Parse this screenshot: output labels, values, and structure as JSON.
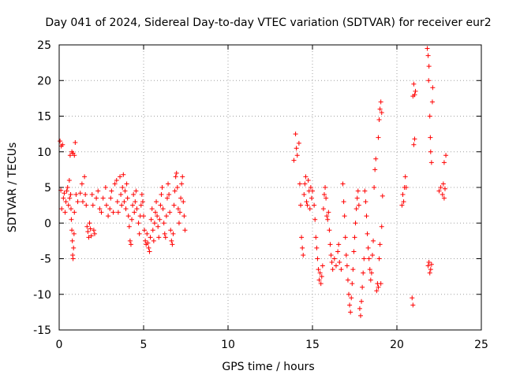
{
  "chart_data": {
    "type": "scatter",
    "title": "Day 041 of 2024, Sidereal Day-to-day VTEC variation (SDTVAR) for receiver eur2",
    "xlabel": "GPS time / hours",
    "ylabel": "SDTVAR / TECUs",
    "xlim": [
      0,
      25
    ],
    "ylim": [
      -15,
      25
    ],
    "x_ticks": [
      0,
      5,
      10,
      15,
      20,
      25
    ],
    "y_ticks": [
      -15,
      -10,
      -5,
      0,
      5,
      10,
      15,
      20,
      25
    ],
    "grid": true,
    "marker": "+",
    "color": "#ff0000",
    "series": [
      {
        "name": "SDTVAR",
        "points": [
          [
            0.05,
            11.5
          ],
          [
            0.12,
            10.8
          ],
          [
            0.2,
            11.0
          ],
          [
            0.1,
            4.6
          ],
          [
            0.15,
            2.0
          ],
          [
            0.25,
            3.5
          ],
          [
            0.3,
            4.2
          ],
          [
            0.35,
            1.5
          ],
          [
            0.4,
            3.0
          ],
          [
            0.45,
            4.5
          ],
          [
            0.5,
            5.0
          ],
          [
            0.55,
            2.5
          ],
          [
            0.6,
            6.0
          ],
          [
            0.62,
            3.5
          ],
          [
            0.65,
            9.5
          ],
          [
            0.68,
            4.0
          ],
          [
            0.7,
            2.0
          ],
          [
            0.72,
            0.5
          ],
          [
            0.75,
            -1.0
          ],
          [
            0.78,
            -2.5
          ],
          [
            0.8,
            -4.5
          ],
          [
            0.82,
            -5.0
          ],
          [
            0.85,
            -3.5
          ],
          [
            0.88,
            -1.5
          ],
          [
            0.9,
            1.5
          ],
          [
            0.75,
            10.0
          ],
          [
            0.82,
            9.8
          ],
          [
            0.95,
            11.3
          ],
          [
            0.9,
            9.5
          ],
          [
            1.0,
            4.0
          ],
          [
            1.1,
            3.0
          ],
          [
            1.25,
            4.2
          ],
          [
            1.35,
            5.5
          ],
          [
            1.4,
            3.0
          ],
          [
            1.5,
            6.5
          ],
          [
            1.55,
            4.0
          ],
          [
            1.6,
            2.5
          ],
          [
            1.65,
            -0.5
          ],
          [
            1.7,
            -1.2
          ],
          [
            1.75,
            -2.0
          ],
          [
            1.8,
            0.0
          ],
          [
            1.85,
            -0.8
          ],
          [
            1.9,
            -1.8
          ],
          [
            1.95,
            4.0
          ],
          [
            2.0,
            2.5
          ],
          [
            2.05,
            -1.0
          ],
          [
            2.1,
            -1.5
          ],
          [
            2.2,
            3.5
          ],
          [
            2.3,
            4.5
          ],
          [
            2.4,
            2.0
          ],
          [
            2.5,
            1.5
          ],
          [
            2.6,
            3.5
          ],
          [
            2.75,
            5.0
          ],
          [
            2.8,
            2.5
          ],
          [
            2.9,
            1.0
          ],
          [
            3.0,
            2.0
          ],
          [
            3.05,
            3.5
          ],
          [
            3.1,
            4.5
          ],
          [
            3.2,
            1.5
          ],
          [
            3.3,
            5.5
          ],
          [
            3.4,
            6.0
          ],
          [
            3.45,
            3.0
          ],
          [
            3.5,
            1.5
          ],
          [
            3.6,
            6.5
          ],
          [
            3.65,
            4.0
          ],
          [
            3.7,
            2.5
          ],
          [
            3.75,
            5.0
          ],
          [
            3.8,
            6.8
          ],
          [
            3.85,
            3.0
          ],
          [
            3.9,
            4.5
          ],
          [
            3.95,
            2.0
          ],
          [
            4.0,
            5.5
          ],
          [
            4.05,
            3.5
          ],
          [
            4.1,
            1.0
          ],
          [
            4.15,
            -0.5
          ],
          [
            4.2,
            -2.5
          ],
          [
            4.25,
            -3.0
          ],
          [
            4.3,
            0.5
          ],
          [
            4.35,
            2.5
          ],
          [
            4.4,
            4.0
          ],
          [
            4.45,
            1.5
          ],
          [
            4.5,
            3.0
          ],
          [
            4.55,
            4.5
          ],
          [
            4.6,
            2.0
          ],
          [
            4.7,
            0.0
          ],
          [
            4.75,
            -1.5
          ],
          [
            4.8,
            1.0
          ],
          [
            4.85,
            2.5
          ],
          [
            4.9,
            4.0
          ],
          [
            4.95,
            3.0
          ],
          [
            5.0,
            1.0
          ],
          [
            5.05,
            -1.0
          ],
          [
            5.1,
            -2.5
          ],
          [
            5.15,
            -3.0
          ],
          [
            5.2,
            -1.5
          ],
          [
            5.25,
            -2.8
          ],
          [
            5.3,
            -3.5
          ],
          [
            5.35,
            -4.0
          ],
          [
            5.4,
            -2.0
          ],
          [
            5.45,
            0.5
          ],
          [
            5.5,
            2.0
          ],
          [
            5.55,
            -1.0
          ],
          [
            5.6,
            -2.5
          ],
          [
            5.65,
            0.0
          ],
          [
            5.7,
            1.5
          ],
          [
            5.75,
            3.0
          ],
          [
            5.8,
            1.0
          ],
          [
            5.85,
            -0.5
          ],
          [
            5.9,
            -2.0
          ],
          [
            5.95,
            0.5
          ],
          [
            6.0,
            2.5
          ],
          [
            6.05,
            4.0
          ],
          [
            6.1,
            5.0
          ],
          [
            6.15,
            2.0
          ],
          [
            6.2,
            0.0
          ],
          [
            6.25,
            -1.5
          ],
          [
            6.3,
            -2.0
          ],
          [
            6.35,
            1.0
          ],
          [
            6.4,
            3.5
          ],
          [
            6.45,
            5.5
          ],
          [
            6.5,
            4.0
          ],
          [
            6.55,
            1.5
          ],
          [
            6.6,
            -1.0
          ],
          [
            6.65,
            -2.5
          ],
          [
            6.7,
            -3.0
          ],
          [
            6.75,
            -1.5
          ],
          [
            6.8,
            2.5
          ],
          [
            6.85,
            4.5
          ],
          [
            6.9,
            6.5
          ],
          [
            6.95,
            7.0
          ],
          [
            7.0,
            5.0
          ],
          [
            7.05,
            2.0
          ],
          [
            7.1,
            0.0
          ],
          [
            7.15,
            1.5
          ],
          [
            7.2,
            3.5
          ],
          [
            7.25,
            5.5
          ],
          [
            7.3,
            6.5
          ],
          [
            7.35,
            3.0
          ],
          [
            7.4,
            1.0
          ],
          [
            7.45,
            -1.0
          ],
          [
            13.9,
            8.8
          ],
          [
            14.0,
            12.5
          ],
          [
            14.05,
            10.5
          ],
          [
            14.1,
            9.5
          ],
          [
            14.2,
            11.2
          ],
          [
            14.25,
            5.5
          ],
          [
            14.3,
            2.5
          ],
          [
            14.35,
            -2.0
          ],
          [
            14.4,
            -3.5
          ],
          [
            14.45,
            -4.5
          ],
          [
            14.5,
            4.0
          ],
          [
            14.55,
            5.5
          ],
          [
            14.6,
            6.5
          ],
          [
            14.65,
            3.0
          ],
          [
            14.7,
            2.5
          ],
          [
            14.75,
            6.0
          ],
          [
            14.8,
            4.5
          ],
          [
            14.85,
            2.0
          ],
          [
            14.9,
            5.0
          ],
          [
            14.95,
            3.5
          ],
          [
            15.0,
            4.5
          ],
          [
            15.1,
            2.5
          ],
          [
            15.15,
            0.5
          ],
          [
            15.2,
            -2.0
          ],
          [
            15.25,
            -3.5
          ],
          [
            15.3,
            -5.0
          ],
          [
            15.35,
            -6.5
          ],
          [
            15.4,
            -8.0
          ],
          [
            15.45,
            -7.0
          ],
          [
            15.5,
            -8.5
          ],
          [
            15.55,
            -7.5
          ],
          [
            15.6,
            -6.0
          ],
          [
            15.65,
            2.0
          ],
          [
            15.7,
            4.0
          ],
          [
            15.75,
            5.0
          ],
          [
            15.8,
            3.5
          ],
          [
            15.85,
            1.0
          ],
          [
            15.9,
            0.5
          ],
          [
            15.95,
            1.5
          ],
          [
            16.0,
            -1.0
          ],
          [
            16.05,
            -3.0
          ],
          [
            16.1,
            -4.5
          ],
          [
            16.15,
            -5.5
          ],
          [
            16.2,
            -6.5
          ],
          [
            16.3,
            -5.0
          ],
          [
            16.4,
            -6.0
          ],
          [
            16.5,
            -4.0
          ],
          [
            16.55,
            -3.0
          ],
          [
            16.6,
            -5.5
          ],
          [
            16.7,
            -6.5
          ],
          [
            16.8,
            5.5
          ],
          [
            16.85,
            3.0
          ],
          [
            16.9,
            1.0
          ],
          [
            16.95,
            -2.0
          ],
          [
            17.0,
            -4.5
          ],
          [
            17.05,
            -6.0
          ],
          [
            17.1,
            -8.0
          ],
          [
            17.15,
            -10.0
          ],
          [
            17.2,
            -11.5
          ],
          [
            17.25,
            -12.5
          ],
          [
            17.3,
            -10.5
          ],
          [
            17.35,
            -8.5
          ],
          [
            17.4,
            -6.5
          ],
          [
            17.45,
            -4.0
          ],
          [
            17.5,
            -2.0
          ],
          [
            17.55,
            0.0
          ],
          [
            17.6,
            2.0
          ],
          [
            17.65,
            3.5
          ],
          [
            17.7,
            4.5
          ],
          [
            17.75,
            2.5
          ],
          [
            17.8,
            -12.0
          ],
          [
            17.85,
            -13.0
          ],
          [
            17.9,
            -11.0
          ],
          [
            17.95,
            -9.0
          ],
          [
            18.0,
            -7.0
          ],
          [
            18.05,
            -5.0
          ],
          [
            18.1,
            4.5
          ],
          [
            18.15,
            3.0
          ],
          [
            18.2,
            1.0
          ],
          [
            18.25,
            -1.5
          ],
          [
            18.3,
            -3.5
          ],
          [
            18.35,
            -5.0
          ],
          [
            18.4,
            -6.5
          ],
          [
            18.45,
            -8.0
          ],
          [
            18.5,
            -7.0
          ],
          [
            18.55,
            -4.5
          ],
          [
            18.6,
            -2.5
          ],
          [
            18.65,
            5.0
          ],
          [
            18.7,
            7.5
          ],
          [
            18.75,
            9.0
          ],
          [
            18.8,
            -9.5
          ],
          [
            18.85,
            -8.5
          ],
          [
            18.9,
            -9.0
          ],
          [
            18.95,
            -5.0
          ],
          [
            19.0,
            -3.0
          ],
          [
            18.9,
            12.0
          ],
          [
            18.95,
            14.5
          ],
          [
            19.0,
            16.0
          ],
          [
            19.05,
            17.0
          ],
          [
            19.1,
            15.5
          ],
          [
            19.1,
            -0.5
          ],
          [
            19.15,
            3.8
          ],
          [
            19.05,
            -8.5
          ],
          [
            20.3,
            2.5
          ],
          [
            20.35,
            4.0
          ],
          [
            20.4,
            3.0
          ],
          [
            20.45,
            5.0
          ],
          [
            20.5,
            6.5
          ],
          [
            20.55,
            5.0
          ],
          [
            20.9,
            -10.5
          ],
          [
            20.95,
            -11.5
          ],
          [
            21.0,
            11.0
          ],
          [
            21.05,
            11.8
          ],
          [
            20.95,
            17.8
          ],
          [
            21.0,
            19.5
          ],
          [
            21.05,
            18.0
          ],
          [
            21.1,
            18.5
          ],
          [
            21.8,
            24.5
          ],
          [
            21.85,
            23.5
          ],
          [
            21.9,
            22.0
          ],
          [
            21.88,
            20.0
          ],
          [
            21.95,
            15.0
          ],
          [
            21.98,
            12.0
          ],
          [
            22.0,
            10.0
          ],
          [
            22.05,
            8.5
          ],
          [
            22.1,
            17.0
          ],
          [
            22.12,
            19.0
          ],
          [
            21.85,
            -6.0
          ],
          [
            21.9,
            -5.5
          ],
          [
            21.95,
            -7.0
          ],
          [
            22.0,
            -6.5
          ],
          [
            22.05,
            -5.8
          ],
          [
            22.5,
            4.5
          ],
          [
            22.6,
            5.0
          ],
          [
            22.7,
            4.0
          ],
          [
            22.75,
            5.5
          ],
          [
            22.8,
            3.5
          ],
          [
            22.85,
            4.8
          ],
          [
            22.9,
            9.5
          ],
          [
            22.8,
            8.5
          ]
        ]
      }
    ]
  }
}
